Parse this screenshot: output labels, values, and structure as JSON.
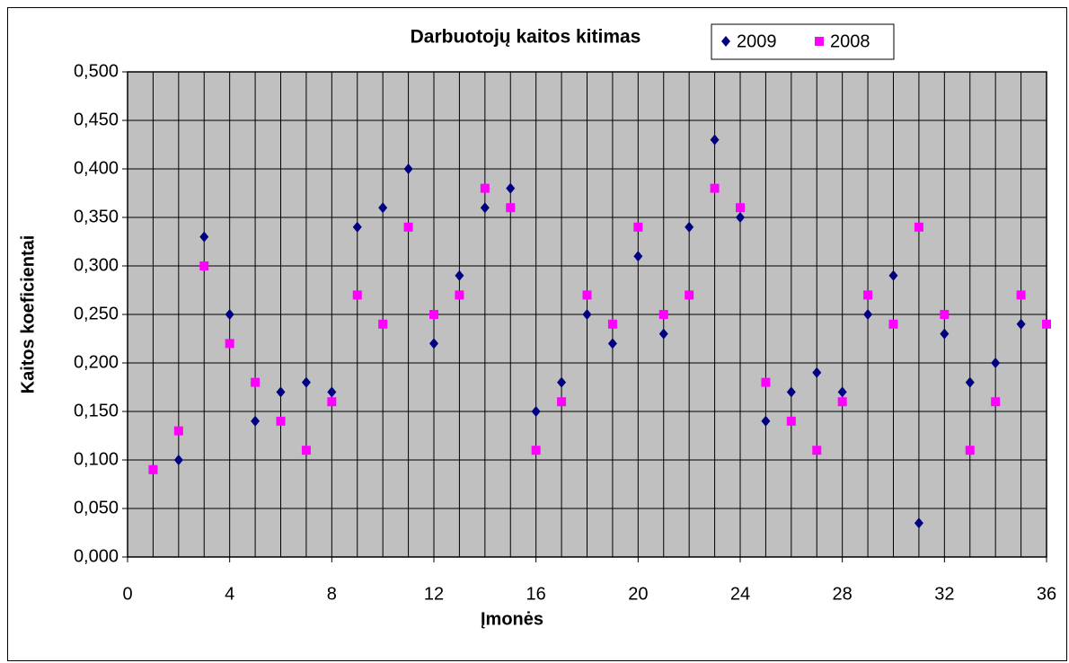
{
  "chart_data": {
    "type": "scatter",
    "title": "Darbuotojų kaitos kitimas",
    "xlabel": "Įmonės",
    "ylabel": "Kaitos koeficientai",
    "legend": "top-right",
    "plot_background": "#c0c0c0",
    "grid": true,
    "xlim": [
      0,
      36
    ],
    "xticks": [
      0,
      4,
      8,
      12,
      16,
      20,
      24,
      28,
      32,
      36
    ],
    "x_minor_ticks": [
      0,
      1,
      2,
      3,
      4,
      5,
      6,
      7,
      8,
      9,
      10,
      11,
      12,
      13,
      14,
      15,
      16,
      17,
      18,
      19,
      20,
      21,
      22,
      23,
      24,
      25,
      26,
      27,
      28,
      29,
      30,
      31,
      32,
      33,
      34,
      35,
      36
    ],
    "ylim": [
      0,
      0.5
    ],
    "yticks": [
      {
        "value": 0,
        "label": "0,000"
      },
      {
        "value": 0.05,
        "label": "0,050"
      },
      {
        "value": 0.1,
        "label": "0,100"
      },
      {
        "value": 0.15,
        "label": "0,150"
      },
      {
        "value": 0.2,
        "label": "0,200"
      },
      {
        "value": 0.25,
        "label": "0,250"
      },
      {
        "value": 0.3,
        "label": "0,300"
      },
      {
        "value": 0.35,
        "label": "0,350"
      },
      {
        "value": 0.4,
        "label": "0,400"
      },
      {
        "value": 0.45,
        "label": "0,450"
      },
      {
        "value": 0.5,
        "label": "0,500"
      }
    ],
    "x": [
      1,
      2,
      3,
      4,
      5,
      6,
      7,
      8,
      9,
      10,
      11,
      12,
      13,
      14,
      15,
      16,
      17,
      18,
      19,
      20,
      21,
      22,
      23,
      24,
      25,
      26,
      27,
      28,
      29,
      30,
      31,
      32,
      33,
      34,
      35,
      36
    ],
    "series": [
      {
        "name": "2009",
        "color": "#000080",
        "marker": "diamond",
        "values": [
          0.09,
          0.1,
          0.33,
          0.25,
          0.14,
          0.17,
          0.18,
          0.17,
          0.34,
          0.36,
          0.4,
          0.22,
          0.29,
          0.36,
          0.38,
          0.15,
          0.18,
          0.25,
          0.22,
          0.31,
          0.23,
          0.34,
          0.43,
          0.35,
          0.14,
          0.17,
          0.19,
          0.17,
          0.25,
          0.29,
          0.035,
          0.23,
          0.18,
          0.2,
          0.24,
          0.24
        ]
      },
      {
        "name": "2008",
        "color": "#ff00ff",
        "marker": "square",
        "values": [
          0.09,
          0.13,
          0.3,
          0.22,
          0.18,
          0.14,
          0.11,
          0.16,
          0.27,
          0.24,
          0.34,
          0.25,
          0.27,
          0.38,
          0.36,
          0.11,
          0.16,
          0.27,
          0.24,
          0.34,
          0.25,
          0.27,
          0.38,
          0.36,
          0.18,
          0.14,
          0.11,
          0.16,
          0.27,
          0.24,
          0.34,
          0.25,
          0.11,
          0.16,
          0.27,
          0.24
        ]
      }
    ]
  }
}
